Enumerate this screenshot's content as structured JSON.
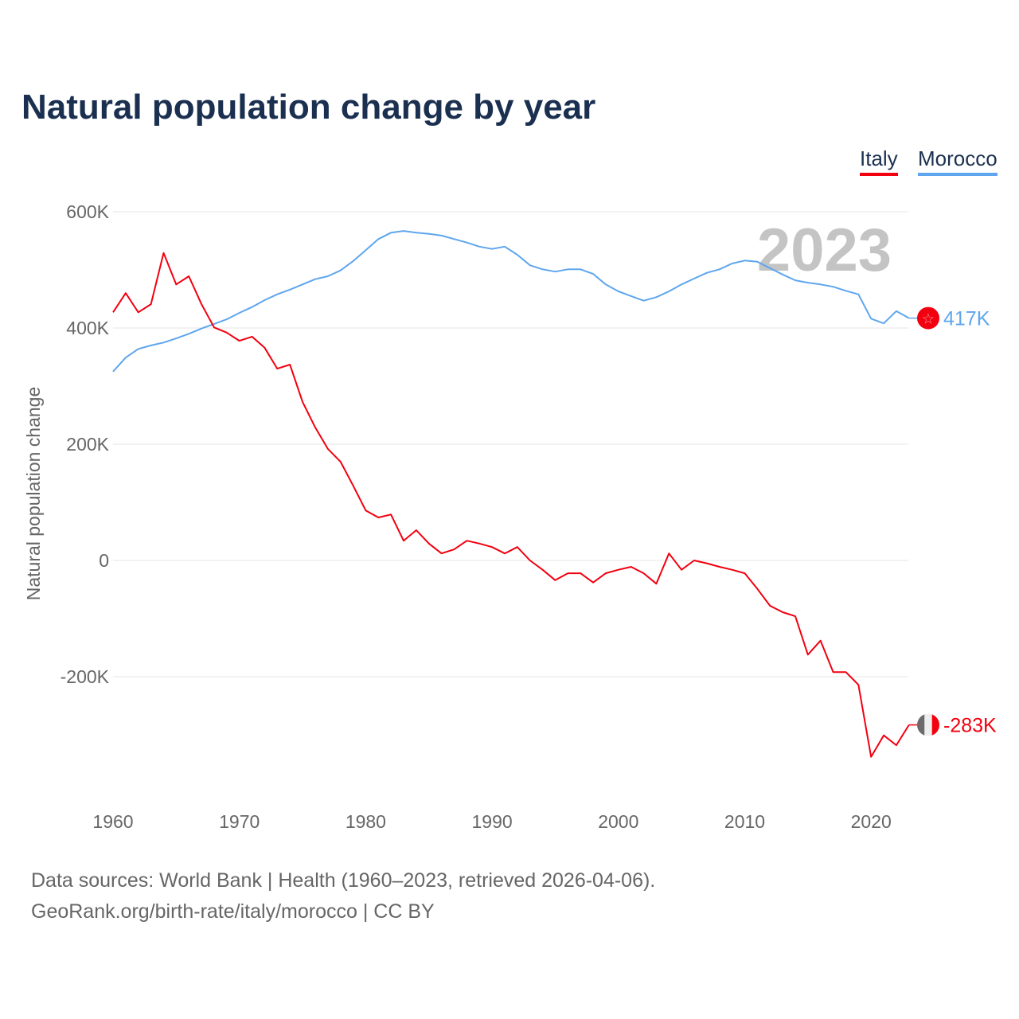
{
  "title": "Natural population change by year",
  "legend": [
    {
      "name": "Italy",
      "color": "#f2000f"
    },
    {
      "name": "Morocco",
      "color": "#5ea6ee"
    }
  ],
  "year_label": "2023",
  "footer": {
    "line1": "Data sources: World Bank | Health (1960–2023, retrieved 2026-04-06).",
    "line2": "GeoRank.org/birth-rate/italy/morocco | CC BY"
  },
  "chart_data": {
    "type": "line",
    "title": "Natural population change by year",
    "xlabel": "",
    "ylabel": "Natural population change",
    "xlim": [
      1960,
      2023
    ],
    "ylim": [
      -380,
      620
    ],
    "grid": true,
    "legend_position": "top-right",
    "x_ticks": [
      1960,
      1970,
      1980,
      1990,
      2000,
      2010,
      2020
    ],
    "x_tick_labels": [
      "1960",
      "1970",
      "1980",
      "1990",
      "2000",
      "2010",
      "2020"
    ],
    "y_ticks": [
      600,
      400,
      200,
      0,
      -200
    ],
    "y_tick_labels": [
      "600K",
      "400K",
      "200K",
      "0",
      "-200K"
    ],
    "x_start": 1960,
    "series": [
      {
        "name": "Italy",
        "color": "#f2000f",
        "end_label": "-283K",
        "flag": "italy-flag",
        "values": [
          427,
          460,
          427,
          441,
          529,
          475,
          489,
          441,
          401,
          392,
          378,
          385,
          366,
          330,
          337,
          273,
          229,
          192,
          170,
          129,
          86,
          74,
          79,
          34,
          52,
          29,
          12,
          19,
          34,
          29,
          23,
          12,
          23,
          0,
          -16,
          -34,
          -22,
          -22,
          -38,
          -22,
          -16,
          -11,
          -22,
          -40,
          12,
          -16,
          0,
          -5,
          -11,
          -16,
          -22,
          -49,
          -78,
          -89,
          -96,
          -162,
          -138,
          -192,
          -192,
          -214,
          -338,
          -301,
          -318,
          -283
        ]
      },
      {
        "name": "Morocco",
        "color": "#5ea6ee",
        "end_label": "417K",
        "flag": "morocco-flag",
        "values": [
          325,
          349,
          364,
          370,
          375,
          382,
          390,
          399,
          407,
          415,
          426,
          436,
          448,
          458,
          466,
          475,
          484,
          489,
          499,
          515,
          534,
          553,
          564,
          567,
          564,
          562,
          559,
          553,
          547,
          540,
          536,
          540,
          526,
          508,
          501,
          497,
          501,
          501,
          493,
          475,
          463,
          455,
          447,
          453,
          463,
          475,
          485,
          495,
          501,
          511,
          516,
          514,
          503,
          492,
          482,
          478,
          475,
          471,
          464,
          458,
          416,
          408,
          429,
          417
        ]
      }
    ]
  }
}
